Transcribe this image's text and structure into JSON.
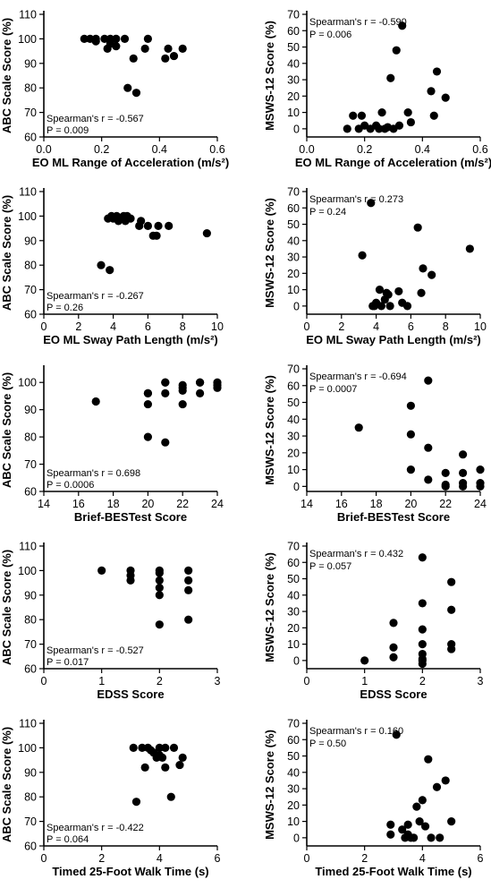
{
  "chart_data": [
    {
      "type": "scatter",
      "xlabel": "EO ML Range of Acceleration (m/s²)",
      "ylabel": "ABC Scale Score (%)",
      "xlim": [
        0.0,
        0.6
      ],
      "ylim": [
        60,
        110
      ],
      "xticks": [
        0.0,
        0.2,
        0.4,
        0.6
      ],
      "xtick_labels": [
        "0.0",
        "0.2",
        "0.4",
        "0.6"
      ],
      "yticks": [
        60,
        70,
        80,
        90,
        100,
        110
      ],
      "ytick_labels": [
        "60",
        "70",
        "80",
        "90",
        "100",
        "110"
      ],
      "annotation": [
        "Spearman's r = -0.567",
        "P = 0.009"
      ],
      "x": [
        0.14,
        0.16,
        0.18,
        0.18,
        0.21,
        0.22,
        0.23,
        0.23,
        0.25,
        0.25,
        0.28,
        0.29,
        0.31,
        0.32,
        0.35,
        0.36,
        0.42,
        0.43,
        0.45,
        0.48
      ],
      "y": [
        100,
        100,
        100,
        99,
        100,
        96,
        100,
        98,
        100,
        97,
        100,
        80,
        92,
        78,
        96,
        100,
        92,
        96,
        93,
        96
      ]
    },
    {
      "type": "scatter",
      "xlabel": "EO ML Range of Acceleration (m/s²)",
      "ylabel": "MSWS-12 Score (%)",
      "xlim": [
        0.0,
        0.6
      ],
      "ylim": [
        -5,
        70
      ],
      "xticks": [
        0.0,
        0.2,
        0.4,
        0.6
      ],
      "xtick_labels": [
        "0.0",
        "0.2",
        "0.4",
        "0.6"
      ],
      "yticks": [
        0,
        10,
        20,
        30,
        40,
        50,
        60,
        70
      ],
      "ytick_labels": [
        "0",
        "10",
        "20",
        "30",
        "40",
        "50",
        "60",
        "70"
      ],
      "annotation": [
        "Spearman's r = -0.590",
        "P = 0.006"
      ],
      "x": [
        0.14,
        0.16,
        0.18,
        0.19,
        0.2,
        0.22,
        0.24,
        0.25,
        0.26,
        0.27,
        0.28,
        0.29,
        0.3,
        0.31,
        0.32,
        0.33,
        0.35,
        0.36,
        0.43,
        0.44,
        0.45,
        0.48
      ],
      "y": [
        0,
        8,
        0,
        8,
        2,
        0,
        2,
        0,
        10,
        0,
        1,
        31,
        0,
        48,
        2,
        63,
        10,
        4,
        23,
        8,
        35,
        19
      ]
    },
    {
      "type": "scatter",
      "xlabel": "EO ML Sway Path Length (m/s²)",
      "ylabel": "ABC Scale Score (%)",
      "xlim": [
        0,
        10
      ],
      "ylim": [
        60,
        110
      ],
      "xticks": [
        0,
        2,
        4,
        6,
        8,
        10
      ],
      "xtick_labels": [
        "0",
        "2",
        "4",
        "6",
        "8",
        "10"
      ],
      "yticks": [
        60,
        70,
        80,
        90,
        100,
        110
      ],
      "ytick_labels": [
        "60",
        "70",
        "80",
        "90",
        "100",
        "110"
      ],
      "annotation": [
        "Spearman's r = -0.267",
        "P = 0.26"
      ],
      "x": [
        3.3,
        3.7,
        3.8,
        3.9,
        4.0,
        4.2,
        4.3,
        4.4,
        4.6,
        4.7,
        4.8,
        5.0,
        5.5,
        5.6,
        6.0,
        6.3,
        6.5,
        6.6,
        7.2,
        9.4
      ],
      "y": [
        80,
        99,
        78,
        100,
        99,
        100,
        98,
        99,
        100,
        98,
        100,
        99,
        96,
        98,
        96,
        92,
        92,
        96,
        96,
        93
      ]
    },
    {
      "type": "scatter",
      "xlabel": "EO ML Sway Path Length (m/s²)",
      "ylabel": "MSWS-12 Score (%)",
      "xlim": [
        0,
        10
      ],
      "ylim": [
        -5,
        70
      ],
      "xticks": [
        0,
        2,
        4,
        6,
        8,
        10
      ],
      "xtick_labels": [
        "0",
        "2",
        "4",
        "6",
        "8",
        "10"
      ],
      "yticks": [
        0,
        10,
        20,
        30,
        40,
        50,
        60,
        70
      ],
      "ytick_labels": [
        "0",
        "10",
        "20",
        "30",
        "40",
        "50",
        "60",
        "70"
      ],
      "annotation": [
        "Spearman's r = 0.273",
        "P = 0.24"
      ],
      "x": [
        3.2,
        3.7,
        3.8,
        3.9,
        4.0,
        4.2,
        4.3,
        4.5,
        4.6,
        4.7,
        4.8,
        5.3,
        5.5,
        5.8,
        6.4,
        6.6,
        6.7,
        7.2,
        9.4
      ],
      "y": [
        31,
        63,
        0,
        0,
        2,
        10,
        0,
        4,
        8,
        7,
        0,
        9,
        2,
        0,
        48,
        8,
        23,
        19,
        35
      ]
    },
    {
      "type": "scatter",
      "xlabel": "Brief-BESTest Score",
      "ylabel": "ABC Scale Score (%)",
      "xlim": [
        14,
        24
      ],
      "ylim": [
        60,
        105
      ],
      "xticks": [
        14,
        16,
        18,
        20,
        22,
        24
      ],
      "xtick_labels": [
        "14",
        "16",
        "18",
        "20",
        "22",
        "24"
      ],
      "yticks": [
        60,
        70,
        80,
        90,
        100
      ],
      "ytick_labels": [
        "60",
        "70",
        "80",
        "90",
        "100"
      ],
      "annotation": [
        "Spearman's r = 0.698",
        "P = 0.0006"
      ],
      "x": [
        17,
        20,
        20,
        20,
        20,
        21,
        21,
        21,
        21,
        22,
        22,
        22,
        22,
        23,
        23,
        23,
        24,
        24,
        24
      ],
      "y": [
        93,
        96,
        92,
        80,
        96,
        100,
        96,
        78,
        100,
        98,
        99,
        92,
        97,
        100,
        96,
        100,
        98,
        100,
        99
      ]
    },
    {
      "type": "scatter",
      "xlabel": "Brief-BESTest Score",
      "ylabel": "MSWS-12 Score (%)",
      "xlim": [
        14,
        24
      ],
      "ylim": [
        -3,
        70
      ],
      "xticks": [
        14,
        16,
        18,
        20,
        22,
        24
      ],
      "xtick_labels": [
        "14",
        "16",
        "18",
        "20",
        "22",
        "24"
      ],
      "yticks": [
        0,
        10,
        20,
        30,
        40,
        50,
        60,
        70
      ],
      "ytick_labels": [
        "0",
        "10",
        "20",
        "30",
        "40",
        "50",
        "60",
        "70"
      ],
      "annotation": [
        "Spearman's r = -0.694",
        "P = 0.0007"
      ],
      "x": [
        17,
        20,
        20,
        20,
        21,
        21,
        21,
        22,
        22,
        22,
        23,
        23,
        23,
        23,
        24,
        24,
        24
      ],
      "y": [
        35,
        48,
        31,
        10,
        63,
        23,
        4,
        8,
        0,
        1,
        19,
        8,
        2,
        0,
        10,
        2,
        0
      ]
    },
    {
      "type": "scatter",
      "xlabel": "EDSS Score",
      "ylabel": "ABC Scale Score (%)",
      "xlim": [
        0,
        3
      ],
      "ylim": [
        60,
        110
      ],
      "xticks": [
        0,
        1,
        2,
        3
      ],
      "xtick_labels": [
        "0",
        "1",
        "2",
        "3"
      ],
      "yticks": [
        60,
        70,
        80,
        90,
        100,
        110
      ],
      "ytick_labels": [
        "60",
        "70",
        "80",
        "90",
        "100",
        "110"
      ],
      "annotation": [
        "Spearman's r = -0.527",
        "P = 0.017"
      ],
      "x": [
        1.0,
        1.5,
        1.5,
        1.5,
        2.0,
        2.0,
        2.0,
        2.0,
        2.0,
        2.0,
        2.5,
        2.5,
        2.5,
        2.5
      ],
      "y": [
        100,
        100,
        98,
        96,
        100,
        99,
        96,
        93,
        90,
        78,
        100,
        96,
        92,
        80
      ]
    },
    {
      "type": "scatter",
      "xlabel": "EDSS Score",
      "ylabel": "MSWS-12 Score (%)",
      "xlim": [
        0,
        3
      ],
      "ylim": [
        -5,
        70
      ],
      "xticks": [
        0,
        1,
        2,
        3
      ],
      "xtick_labels": [
        "0",
        "1",
        "2",
        "3"
      ],
      "yticks": [
        0,
        10,
        20,
        30,
        40,
        50,
        60,
        70
      ],
      "ytick_labels": [
        "0",
        "10",
        "20",
        "30",
        "40",
        "50",
        "60",
        "70"
      ],
      "annotation": [
        "Spearman's r = 0.432",
        "P = 0.057"
      ],
      "x": [
        1.0,
        1.5,
        1.5,
        1.5,
        2.0,
        2.0,
        2.0,
        2.0,
        2.0,
        2.0,
        2.0,
        2.0,
        2.5,
        2.5,
        2.5,
        2.5
      ],
      "y": [
        0,
        23,
        8,
        2,
        63,
        35,
        19,
        10,
        4,
        0,
        -2,
        1,
        48,
        31,
        10,
        7
      ]
    },
    {
      "type": "scatter",
      "xlabel": "Timed 25-Foot Walk Time (s)",
      "ylabel": "ABC Scale Score (%)",
      "xlim": [
        0,
        6
      ],
      "ylim": [
        60,
        110
      ],
      "xticks": [
        0,
        2,
        4,
        6
      ],
      "xtick_labels": [
        "0",
        "2",
        "4",
        "6"
      ],
      "yticks": [
        60,
        70,
        80,
        90,
        100,
        110
      ],
      "ytick_labels": [
        "60",
        "70",
        "80",
        "90",
        "100",
        "110"
      ],
      "annotation": [
        "Spearman's r = -0.422",
        "P = 0.064"
      ],
      "x": [
        3.1,
        3.2,
        3.4,
        3.5,
        3.6,
        3.7,
        3.8,
        3.9,
        4.0,
        4.0,
        4.1,
        4.2,
        4.2,
        4.4,
        4.5,
        4.7,
        4.8
      ],
      "y": [
        100,
        78,
        100,
        92,
        100,
        99,
        98,
        96,
        100,
        97,
        96,
        92,
        100,
        80,
        100,
        93,
        96
      ]
    },
    {
      "type": "scatter",
      "xlabel": "Timed 25-Foot Walk Time (s)",
      "ylabel": "MSWS-12 Score (%)",
      "xlim": [
        0,
        6
      ],
      "ylim": [
        -5,
        70
      ],
      "xticks": [
        0,
        2,
        4,
        6
      ],
      "xtick_labels": [
        "0",
        "2",
        "4",
        "6"
      ],
      "yticks": [
        0,
        10,
        20,
        30,
        40,
        50,
        60,
        70
      ],
      "ytick_labels": [
        "0",
        "10",
        "20",
        "30",
        "40",
        "50",
        "60",
        "70"
      ],
      "annotation": [
        "Spearman's r = 0.160",
        "P = 0.50"
      ],
      "x": [
        2.9,
        2.9,
        3.1,
        3.3,
        3.4,
        3.5,
        3.5,
        3.6,
        3.7,
        3.8,
        3.9,
        4.0,
        4.1,
        4.2,
        4.3,
        4.5,
        4.6,
        4.8,
        5.0
      ],
      "y": [
        8,
        2,
        63,
        5,
        0,
        2,
        8,
        0,
        0,
        19,
        10,
        23,
        7,
        48,
        0,
        31,
        0,
        35,
        10
      ]
    }
  ]
}
